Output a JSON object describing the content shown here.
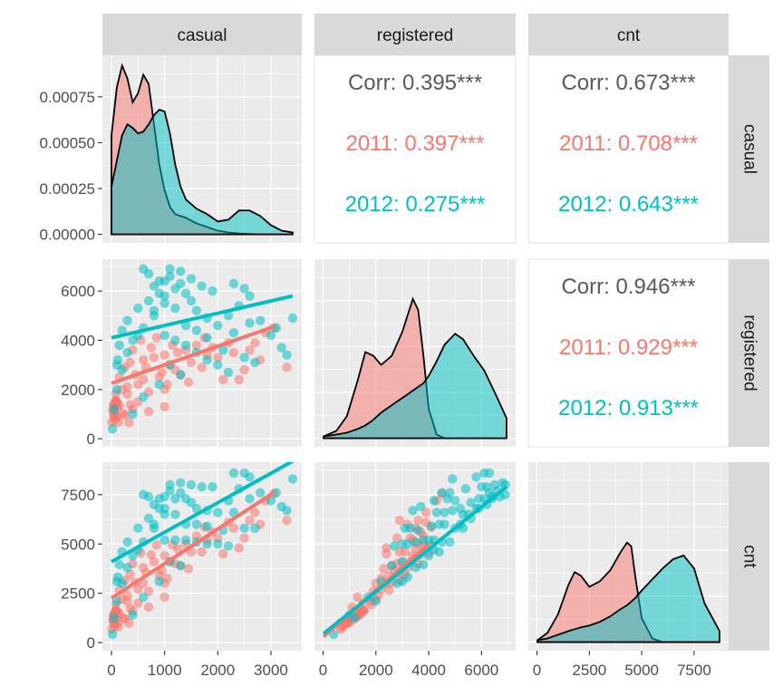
{
  "chart_data": {
    "type": "scatter",
    "title": "",
    "variables": [
      "casual",
      "registered",
      "cnt"
    ],
    "axis_ranges": {
      "casual": [
        0,
        3410
      ],
      "registered": [
        20,
        6946
      ],
      "cnt": [
        22,
        8714
      ]
    },
    "groups": [
      {
        "name": "2011",
        "color": "#F8766D"
      },
      {
        "name": "2012",
        "color": "#00BFC4"
      }
    ],
    "density_axis": {
      "range": [
        0,
        0.00093
      ],
      "ticks": [
        0,
        0.00025,
        0.0005,
        0.00075
      ],
      "tick_labels": [
        "0.00000",
        "0.00025",
        "0.00050",
        "0.00075"
      ]
    },
    "x_axis_ticks": {
      "casual": {
        "values": [
          0,
          1000,
          2000,
          3000
        ],
        "labels": [
          "0",
          "1000",
          "2000",
          "3000"
        ]
      },
      "registered": {
        "values": [
          0,
          2000,
          4000,
          6000
        ],
        "labels": [
          "0",
          "2000",
          "4000",
          "6000"
        ]
      },
      "cnt": {
        "values": [
          0,
          2500,
          5000,
          7500
        ],
        "labels": [
          "0",
          "2500",
          "5000",
          "7500"
        ]
      }
    },
    "y_axis_ticks": {
      "registered": {
        "values": [
          0,
          2000,
          4000,
          6000
        ],
        "labels": [
          "0",
          "2000",
          "4000",
          "6000"
        ]
      },
      "cnt": {
        "values": [
          0,
          2500,
          5000,
          7500
        ],
        "labels": [
          "0",
          "2500",
          "5000",
          "7500"
        ]
      }
    },
    "correlations": [
      {
        "row": "casual",
        "col": "registered",
        "overall": "Corr: 0.395***",
        "g2011": "2011: 0.397***",
        "g2012": "2012: 0.275***"
      },
      {
        "row": "casual",
        "col": "cnt",
        "overall": "Corr: 0.673***",
        "g2011": "2011: 0.708***",
        "g2012": "2012: 0.643***"
      },
      {
        "row": "registered",
        "col": "cnt",
        "overall": "Corr: 0.946***",
        "g2011": "2011: 0.929***",
        "g2012": "2012: 0.913***"
      }
    ],
    "densities": {
      "casual": {
        "x": [
          0,
          100,
          200,
          300,
          400,
          500,
          600,
          700,
          800,
          900,
          1000,
          1100,
          1200,
          1300,
          1400,
          1600,
          1800,
          2000,
          2200,
          2400,
          2600,
          2800,
          3000,
          3200,
          3410
        ],
        "g2011": [
          0.00054,
          0.0008,
          0.00092,
          0.00085,
          0.00072,
          0.00077,
          0.00087,
          0.00082,
          0.0006,
          0.00038,
          0.00024,
          0.00015,
          0.00011,
          0.0001,
          9e-05,
          6e-05,
          4e-05,
          2e-05,
          1e-05,
          5e-06,
          2e-06,
          0,
          0,
          0,
          0
        ],
        "g2012": [
          0.00026,
          0.0004,
          0.00054,
          0.0006,
          0.00058,
          0.00055,
          0.00056,
          0.0006,
          0.00065,
          0.00068,
          0.00067,
          0.00055,
          0.00038,
          0.00026,
          0.00019,
          0.00014,
          0.00011,
          7e-05,
          8e-05,
          0.00013,
          0.00013,
          0.0001,
          5e-05,
          2e-05,
          1e-05
        ]
      },
      "registered": {
        "x": [
          20,
          500,
          900,
          1300,
          1600,
          1900,
          2200,
          2600,
          3000,
          3400,
          3600,
          3800,
          4000,
          4300,
          4600,
          5000,
          5300,
          5700,
          6100,
          6500,
          6946
        ],
        "g2011": [
          1e-05,
          4e-05,
          0.00012,
          0.00031,
          0.00047,
          0.00045,
          0.0004,
          0.00045,
          0.00058,
          0.00076,
          0.0007,
          0.00045,
          0.00016,
          2e-05,
          0,
          0,
          0,
          0,
          0,
          0,
          0
        ],
        "g2012": [
          1e-05,
          2e-05,
          3e-05,
          5e-05,
          7e-05,
          0.0001,
          0.00014,
          0.00018,
          0.00022,
          0.00026,
          0.00028,
          0.0003,
          0.00034,
          0.00042,
          0.00051,
          0.00057,
          0.00054,
          0.00045,
          0.00037,
          0.00025,
          0.00011
        ]
      },
      "cnt": {
        "x": [
          22,
          500,
          1000,
          1500,
          1800,
          2100,
          2500,
          3000,
          3500,
          4000,
          4300,
          4500,
          4700,
          5000,
          5500,
          6000,
          6500,
          7000,
          7500,
          8000,
          8714
        ],
        "g2011": [
          1e-05,
          5e-05,
          0.00015,
          0.00031,
          0.00038,
          0.00036,
          0.0003,
          0.00033,
          0.00039,
          0.00049,
          0.00054,
          0.00052,
          0.00035,
          0.00013,
          2e-05,
          0,
          0,
          0,
          0,
          0,
          0
        ],
        "g2012": [
          1e-05,
          2e-05,
          4e-05,
          6e-05,
          7e-05,
          8e-05,
          9e-05,
          0.00011,
          0.00014,
          0.00018,
          0.0002,
          0.00022,
          0.00024,
          0.00028,
          0.00034,
          0.0004,
          0.00045,
          0.00047,
          0.0004,
          0.00021,
          6e-05
        ]
      }
    },
    "points": {
      "g2011": [
        [
          331,
          654,
          985
        ],
        [
          131,
          670,
          801
        ],
        [
          120,
          1229,
          1349
        ],
        [
          108,
          1454,
          1562
        ],
        [
          82,
          1518,
          1600
        ],
        [
          88,
          1518,
          1606
        ],
        [
          148,
          1362,
          1510
        ],
        [
          68,
          891,
          959
        ],
        [
          54,
          768,
          822
        ],
        [
          41,
          1280,
          1321
        ],
        [
          43,
          1220,
          1263
        ],
        [
          25,
          1137,
          1162
        ],
        [
          38,
          1368,
          1406
        ],
        [
          54,
          1367,
          1421
        ],
        [
          222,
          1026,
          1248
        ],
        [
          251,
          953,
          1204
        ],
        [
          117,
          883,
          1000
        ],
        [
          9,
          674,
          683
        ],
        [
          78,
          1572,
          1650
        ],
        [
          83,
          1844,
          1927
        ],
        [
          75,
          1468,
          1543
        ],
        [
          40,
          941,
          981
        ],
        [
          47,
          997,
          1044
        ],
        [
          353,
          1381,
          1734
        ],
        [
          1000,
          2000,
          3000
        ],
        [
          700,
          1900,
          2600
        ],
        [
          500,
          2200,
          2700
        ],
        [
          300,
          2100,
          2400
        ],
        [
          900,
          2500,
          3400
        ],
        [
          1200,
          2800,
          4000
        ],
        [
          1100,
          3000,
          4100
        ],
        [
          1500,
          3100,
          4600
        ],
        [
          2000,
          3300,
          5300
        ],
        [
          2300,
          3500,
          5800
        ],
        [
          2600,
          3600,
          6200
        ],
        [
          2900,
          4300,
          7200
        ],
        [
          3050,
          4500,
          7550
        ],
        [
          1800,
          3400,
          5200
        ],
        [
          1400,
          3600,
          5000
        ],
        [
          1000,
          3400,
          4400
        ],
        [
          800,
          3300,
          4100
        ],
        [
          600,
          3200,
          3800
        ],
        [
          400,
          3600,
          4000
        ],
        [
          650,
          2900,
          3550
        ],
        [
          950,
          2700,
          3650
        ],
        [
          1300,
          2600,
          3900
        ],
        [
          1700,
          2900,
          4600
        ],
        [
          2100,
          2400,
          4500
        ],
        [
          2500,
          2800,
          5300
        ],
        [
          2400,
          2400,
          4800
        ],
        [
          2800,
          3200,
          6000
        ],
        [
          3300,
          2900,
          6200
        ],
        [
          500,
          1500,
          2000
        ],
        [
          300,
          1800,
          2100
        ],
        [
          200,
          2000,
          2200
        ],
        [
          450,
          2600,
          3050
        ],
        [
          750,
          3700,
          4450
        ],
        [
          1150,
          3800,
          4950
        ],
        [
          550,
          4000,
          4550
        ],
        [
          850,
          4100,
          4950
        ],
        [
          1250,
          3500,
          4750
        ],
        [
          1600,
          3800,
          5400
        ],
        [
          1900,
          3700,
          5600
        ],
        [
          2200,
          3900,
          6100
        ],
        [
          350,
          3100,
          3450
        ],
        [
          150,
          2500,
          2650
        ],
        [
          250,
          2900,
          3150
        ],
        [
          600,
          2400,
          3000
        ],
        [
          1050,
          2200,
          3250
        ],
        [
          1450,
          2300,
          3750
        ],
        [
          2700,
          3900,
          6600
        ],
        [
          1750,
          4100,
          5850
        ],
        [
          700,
          1100,
          1800
        ],
        [
          400,
          1200,
          1600
        ],
        [
          1000,
          1300,
          2300
        ]
      ],
      "g2012": [
        [
          120,
          3200,
          3320
        ],
        [
          500,
          4200,
          4700
        ],
        [
          800,
          5200,
          6000
        ],
        [
          1000,
          5800,
          6800
        ],
        [
          1200,
          6100,
          7300
        ],
        [
          900,
          6400,
          7300
        ],
        [
          700,
          6700,
          7400
        ],
        [
          600,
          6900,
          7500
        ],
        [
          1100,
          6600,
          7700
        ],
        [
          1300,
          6300,
          7600
        ],
        [
          1400,
          5900,
          7300
        ],
        [
          1000,
          5500,
          6500
        ],
        [
          800,
          5000,
          5800
        ],
        [
          600,
          4500,
          5100
        ],
        [
          400,
          4000,
          4400
        ],
        [
          300,
          3500,
          3800
        ],
        [
          200,
          2800,
          3000
        ],
        [
          100,
          2000,
          2100
        ],
        [
          50,
          1200,
          1250
        ],
        [
          20,
          400,
          420
        ],
        [
          1500,
          5600,
          7100
        ],
        [
          1600,
          5200,
          6800
        ],
        [
          1800,
          4900,
          6700
        ],
        [
          2000,
          4600,
          6600
        ],
        [
          2200,
          5000,
          7200
        ],
        [
          2400,
          5400,
          7800
        ],
        [
          2600,
          5800,
          8400
        ],
        [
          2800,
          4800,
          7600
        ],
        [
          3000,
          4200,
          7200
        ],
        [
          3200,
          3700,
          6900
        ],
        [
          3300,
          3400,
          6700
        ],
        [
          3410,
          4900,
          8300
        ],
        [
          2500,
          6100,
          8600
        ],
        [
          2300,
          6300,
          8600
        ],
        [
          1900,
          6000,
          7900
        ],
        [
          1700,
          6200,
          7900
        ],
        [
          1500,
          6500,
          8000
        ],
        [
          1300,
          6800,
          8100
        ],
        [
          1100,
          6900,
          8000
        ],
        [
          900,
          5900,
          6800
        ],
        [
          700,
          5600,
          6300
        ],
        [
          500,
          5300,
          5800
        ],
        [
          300,
          4800,
          5100
        ],
        [
          200,
          4400,
          4600
        ],
        [
          150,
          3800,
          3950
        ],
        [
          100,
          3000,
          3100
        ],
        [
          1000,
          4200,
          5200
        ],
        [
          1200,
          4000,
          5200
        ],
        [
          1400,
          3800,
          5200
        ],
        [
          1600,
          3500,
          5100
        ],
        [
          1800,
          3200,
          5000
        ],
        [
          2000,
          3000,
          5000
        ],
        [
          2200,
          2700,
          4900
        ],
        [
          2500,
          3300,
          5800
        ],
        [
          2700,
          3100,
          5800
        ],
        [
          1100,
          3000,
          4100
        ],
        [
          1300,
          2600,
          3900
        ],
        [
          900,
          2200,
          3100
        ],
        [
          600,
          1700,
          2300
        ],
        [
          400,
          1000,
          1400
        ],
        [
          800,
          6200,
          7000
        ],
        [
          1000,
          6400,
          7400
        ],
        [
          1200,
          5300,
          6500
        ],
        [
          1400,
          4600,
          6000
        ],
        [
          1600,
          4400,
          6000
        ],
        [
          1800,
          4100,
          5900
        ],
        [
          2100,
          3600,
          5700
        ],
        [
          2300,
          4300,
          6600
        ],
        [
          2600,
          4700,
          7300
        ],
        [
          3100,
          4500,
          7600
        ]
      ]
    },
    "regression": {
      "g2011": {
        "registered~casual": [
          [
            0,
            2250
          ],
          [
            3050,
            4550
          ]
        ],
        "cnt~casual": [
          [
            0,
            2250
          ],
          [
            3050,
            7600
          ]
        ],
        "cnt~registered": [
          [
            20,
            300
          ],
          [
            4000,
            5000
          ]
        ]
      },
      "g2012": {
        "registered~casual": [
          [
            0,
            4100
          ],
          [
            3410,
            5800
          ]
        ],
        "cnt~casual": [
          [
            0,
            4100
          ],
          [
            3410,
            9200
          ]
        ],
        "cnt~registered": [
          [
            20,
            450
          ],
          [
            6946,
            7900
          ]
        ]
      }
    }
  }
}
